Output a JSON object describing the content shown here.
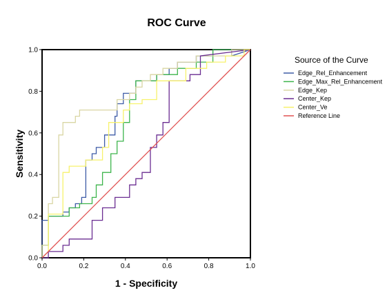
{
  "chart_data": {
    "type": "line",
    "title": "ROC Curve",
    "xlabel": "1 - Specificity",
    "ylabel": "Sensitivity",
    "xlim": [
      0,
      1
    ],
    "ylim": [
      0,
      1
    ],
    "x_ticks": [
      "0.0",
      "0.2",
      "0.4",
      "0.6",
      "0.8",
      "1.0"
    ],
    "y_ticks": [
      "0.0",
      "0.2",
      "0.4",
      "0.6",
      "0.8",
      "1.0"
    ],
    "grid": false,
    "legend_title": "Source of the Curve",
    "legend_position": "right",
    "series": [
      {
        "name": "Edge_Rel_Enhancement",
        "color": "#3c5aa6",
        "x": [
          0,
          0,
          0.03,
          0.03,
          0.1,
          0.1,
          0.13,
          0.13,
          0.16,
          0.16,
          0.19,
          0.19,
          0.21,
          0.21,
          0.24,
          0.24,
          0.26,
          0.26,
          0.3,
          0.3,
          0.35,
          0.35,
          0.36,
          0.36,
          0.39,
          0.39,
          0.45,
          0.45,
          0.55,
          0.55,
          0.61,
          0.61,
          0.65,
          0.65,
          0.74,
          0.74,
          0.82,
          0.82,
          0.91,
          0.91,
          1.0
        ],
        "y": [
          0,
          0.18,
          0.18,
          0.2,
          0.2,
          0.22,
          0.22,
          0.24,
          0.24,
          0.26,
          0.26,
          0.29,
          0.29,
          0.47,
          0.47,
          0.5,
          0.5,
          0.53,
          0.53,
          0.59,
          0.59,
          0.68,
          0.68,
          0.74,
          0.74,
          0.79,
          0.79,
          0.85,
          0.85,
          0.88,
          0.88,
          0.91,
          0.91,
          0.94,
          0.94,
          0.97,
          0.97,
          1.0,
          1.0,
          0.97,
          1.0
        ]
      },
      {
        "name": "Edge_Max_Rel_Enhancement",
        "color": "#3cb44b",
        "x": [
          0,
          0,
          0.03,
          0.03,
          0.13,
          0.13,
          0.18,
          0.18,
          0.24,
          0.24,
          0.26,
          0.26,
          0.29,
          0.29,
          0.33,
          0.33,
          0.36,
          0.36,
          0.39,
          0.39,
          0.42,
          0.42,
          0.45,
          0.45,
          0.48,
          0.48,
          0.55,
          0.55,
          0.65,
          0.65,
          0.74,
          0.74,
          0.82,
          0.82,
          1.0
        ],
        "y": [
          0,
          0.06,
          0.06,
          0.2,
          0.2,
          0.24,
          0.24,
          0.26,
          0.26,
          0.29,
          0.29,
          0.35,
          0.35,
          0.41,
          0.41,
          0.5,
          0.5,
          0.56,
          0.56,
          0.65,
          0.65,
          0.76,
          0.76,
          0.85,
          0.85,
          0.85,
          0.85,
          0.88,
          0.88,
          0.91,
          0.91,
          0.94,
          0.94,
          1.0,
          1.0
        ]
      },
      {
        "name": "Edge_Kep",
        "color": "#d9d6a3",
        "x": [
          0,
          0,
          0.03,
          0.03,
          0.05,
          0.05,
          0.08,
          0.08,
          0.1,
          0.1,
          0.16,
          0.16,
          0.18,
          0.18,
          0.26,
          0.26,
          0.36,
          0.36,
          0.42,
          0.42,
          0.45,
          0.45,
          0.48,
          0.48,
          0.52,
          0.52,
          0.58,
          0.58,
          0.65,
          0.65,
          0.74,
          0.74,
          0.91,
          0.91,
          1.0
        ],
        "y": [
          0,
          0.06,
          0.06,
          0.26,
          0.26,
          0.29,
          0.29,
          0.59,
          0.59,
          0.65,
          0.65,
          0.68,
          0.68,
          0.71,
          0.71,
          0.71,
          0.71,
          0.76,
          0.76,
          0.79,
          0.79,
          0.82,
          0.82,
          0.85,
          0.85,
          0.88,
          0.88,
          0.91,
          0.91,
          0.94,
          0.94,
          0.97,
          0.97,
          1.0,
          1.0
        ]
      },
      {
        "name": "Center_Kep",
        "color": "#6a2c91",
        "x": [
          0,
          0.03,
          0.03,
          0.1,
          0.1,
          0.13,
          0.13,
          0.24,
          0.24,
          0.29,
          0.29,
          0.35,
          0.35,
          0.42,
          0.42,
          0.45,
          0.45,
          0.48,
          0.48,
          0.52,
          0.52,
          0.55,
          0.55,
          0.58,
          0.58,
          0.61,
          0.61,
          0.71,
          0.71,
          0.76,
          0.76,
          1.0
        ],
        "y": [
          0,
          0,
          0.03,
          0.03,
          0.06,
          0.06,
          0.09,
          0.09,
          0.18,
          0.18,
          0.24,
          0.24,
          0.29,
          0.29,
          0.35,
          0.35,
          0.38,
          0.38,
          0.41,
          0.41,
          0.53,
          0.53,
          0.59,
          0.59,
          0.65,
          0.65,
          0.85,
          0.85,
          0.88,
          0.88,
          0.97,
          1.0
        ]
      },
      {
        "name": "Center_Ve",
        "color": "#f7f26b",
        "x": [
          0,
          0.03,
          0.03,
          0.1,
          0.1,
          0.13,
          0.13,
          0.21,
          0.21,
          0.29,
          0.29,
          0.32,
          0.32,
          0.39,
          0.39,
          0.42,
          0.42,
          0.48,
          0.48,
          0.55,
          0.55,
          0.69,
          0.69,
          0.79,
          0.79,
          0.88,
          0.88,
          0.97,
          0.97,
          1.0
        ],
        "y": [
          0,
          0.03,
          0.21,
          0.21,
          0.41,
          0.41,
          0.44,
          0.44,
          0.47,
          0.47,
          0.53,
          0.53,
          0.65,
          0.65,
          0.71,
          0.71,
          0.74,
          0.74,
          0.76,
          0.76,
          0.85,
          0.85,
          0.91,
          0.91,
          0.94,
          0.94,
          0.97,
          0.97,
          1.0,
          1.0
        ]
      },
      {
        "name": "Reference Line",
        "color": "#e05050",
        "x": [
          0,
          1
        ],
        "y": [
          0,
          1
        ]
      }
    ]
  }
}
